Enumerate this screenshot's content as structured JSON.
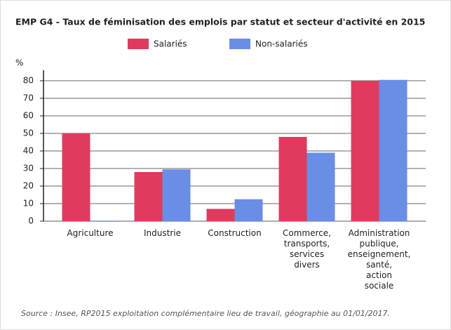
{
  "chart_data": {
    "type": "bar",
    "title": "EMP G4 - Taux de féminisation des emplois par statut et secteur d'activité en 2015",
    "y_label": "%",
    "categories": [
      [
        "Agriculture"
      ],
      [
        "Industrie"
      ],
      [
        "Construction"
      ],
      [
        "Commerce,",
        "transports,",
        "services",
        "divers"
      ],
      [
        "Administration",
        "publique,",
        "enseignement,",
        "santé,",
        "action",
        "sociale"
      ]
    ],
    "series": [
      {
        "name": "Salariés",
        "color": "#e03a5e",
        "values": [
          50,
          28,
          7,
          48,
          80
        ]
      },
      {
        "name": "Non-salariés",
        "color": "#6a8de6",
        "values": [
          0.3,
          29.5,
          12.5,
          39,
          80.5
        ]
      }
    ],
    "ylim": [
      0,
      86
    ],
    "yticks": [
      0,
      10,
      20,
      30,
      40,
      50,
      60,
      70,
      80
    ],
    "grid": true,
    "source": "Source : Insee, RP2015 exploitation complémentaire lieu de travail, géographie au 01/01/2017."
  }
}
